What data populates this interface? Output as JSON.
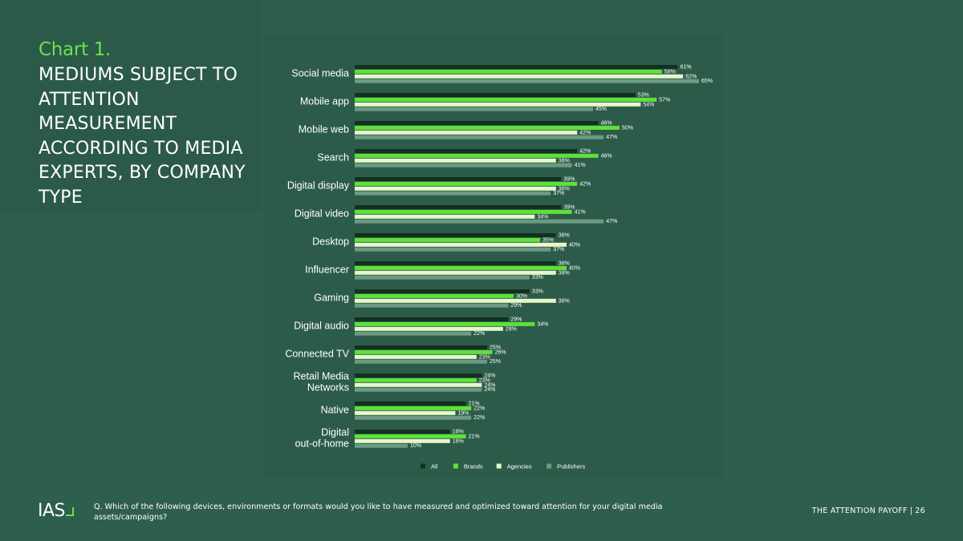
{
  "header": {
    "chart_number": "Chart 1.",
    "title": "MEDIUMS SUBJECT TO ATTENTION MEASUREMENT ACCORDING TO MEDIA EXPERTS, BY COMPANY TYPE"
  },
  "footer": {
    "logo_text": "IAS",
    "question": "Q. Which of the following devices, environments or formats would you like to have measured and optimized toward attention for your digital media assets/campaigns?",
    "report_name": "THE ATTENTION PAYOFF",
    "separator": "|",
    "page_number": "26"
  },
  "colors": {
    "background": "#2e5e4c",
    "panel": "#2c5c49",
    "accent": "#6ee04a"
  },
  "chart_data": {
    "type": "bar",
    "orientation": "horizontal",
    "value_suffix": "%",
    "xlim": [
      0,
      70
    ],
    "grid": false,
    "legend_position": "bottom",
    "categories": [
      [
        "Social media"
      ],
      [
        "Mobile app"
      ],
      [
        "Mobile web"
      ],
      [
        "Search"
      ],
      [
        "Digital display"
      ],
      [
        "Digital video"
      ],
      [
        "Desktop"
      ],
      [
        "Influencer"
      ],
      [
        "Gaming"
      ],
      [
        "Digital audio"
      ],
      [
        "Connected TV"
      ],
      [
        "Retail Media",
        "Networks"
      ],
      [
        "Native"
      ],
      [
        "Digital",
        "out-of-home"
      ]
    ],
    "series": [
      {
        "name": "All",
        "color": "#12301f",
        "values": [
          61,
          53,
          46,
          42,
          39,
          39,
          38,
          38,
          33,
          29,
          25,
          24,
          21,
          18
        ]
      },
      {
        "name": "Brands",
        "color": "#5fe03a",
        "values": [
          58,
          57,
          50,
          46,
          42,
          41,
          35,
          40,
          30,
          34,
          26,
          23,
          22,
          21
        ]
      },
      {
        "name": "Agencies",
        "color": "#e6f7c9",
        "values": [
          62,
          54,
          42,
          38,
          38,
          34,
          40,
          38,
          38,
          28,
          23,
          24,
          19,
          18
        ]
      },
      {
        "name": "Publishers",
        "color": "#6c9a82",
        "values": [
          65,
          45,
          47,
          41,
          37,
          47,
          37,
          33,
          29,
          22,
          25,
          24,
          22,
          10
        ]
      }
    ]
  }
}
